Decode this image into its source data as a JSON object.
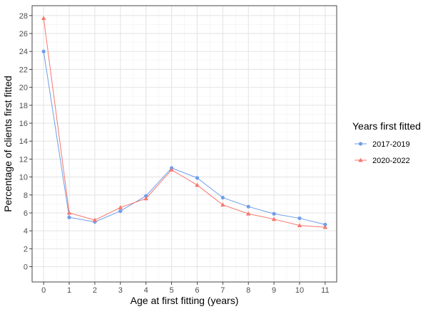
{
  "chart_data": {
    "type": "line",
    "title": "",
    "xlabel": "Age at first fitting (years)",
    "ylabel": "Percentage of clients first fitted",
    "x": [
      0,
      1,
      2,
      3,
      4,
      5,
      6,
      7,
      8,
      9,
      10,
      11
    ],
    "xticks": [
      "0",
      "1",
      "2",
      "3",
      "4",
      "5",
      "6",
      "7",
      "8",
      "9",
      "10",
      "11"
    ],
    "yticks": [
      "0",
      "2",
      "4",
      "6",
      "8",
      "10",
      "12",
      "14",
      "16",
      "18",
      "20",
      "22",
      "24",
      "26",
      "28"
    ],
    "xlim": [
      -0.45,
      11.45
    ],
    "ylim": [
      -1.7,
      29.1
    ],
    "grid": true,
    "legend": {
      "title": "Years first fitted",
      "position": "right"
    },
    "series": [
      {
        "name": "2017-2019",
        "color": "#6e9eeb",
        "marker": "circle",
        "values": [
          24.0,
          5.5,
          5.0,
          6.2,
          7.9,
          11.0,
          9.9,
          7.7,
          6.7,
          5.9,
          5.4,
          4.7
        ]
      },
      {
        "name": "2020-2022",
        "color": "#f8766d",
        "marker": "triangle",
        "values": [
          27.7,
          6.0,
          5.2,
          6.6,
          7.6,
          10.8,
          9.1,
          6.9,
          5.9,
          5.3,
          4.6,
          4.4
        ]
      }
    ]
  }
}
